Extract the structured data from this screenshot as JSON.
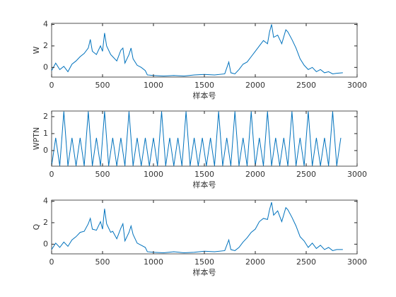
{
  "chart_data": [
    {
      "type": "line",
      "ylabel": "W",
      "xlabel": "样本号",
      "color": "#0072bd",
      "xlim": [
        0,
        3000
      ],
      "ylim": [
        -0.9,
        4.1
      ],
      "xticks": [
        0,
        500,
        1000,
        1500,
        2000,
        2500,
        3000
      ],
      "yticks": [
        0,
        2,
        4
      ],
      "x": [
        0,
        40,
        80,
        120,
        160,
        200,
        240,
        280,
        320,
        360,
        380,
        400,
        440,
        480,
        500,
        520,
        540,
        580,
        600,
        640,
        680,
        700,
        720,
        760,
        780,
        800,
        840,
        880,
        920,
        940,
        1000,
        1100,
        1200,
        1300,
        1400,
        1500,
        1600,
        1700,
        1740,
        1760,
        1800,
        1840,
        1880,
        1920,
        1960,
        2000,
        2040,
        2080,
        2120,
        2140,
        2160,
        2180,
        2220,
        2260,
        2300,
        2320,
        2360,
        2400,
        2440,
        2480,
        2520,
        2560,
        2600,
        2640,
        2680,
        2720,
        2760,
        2800,
        2860
      ],
      "values": [
        -0.3,
        0.4,
        -0.2,
        0.1,
        -0.4,
        0.3,
        0.6,
        1.0,
        1.3,
        1.8,
        2.6,
        1.5,
        1.2,
        2.0,
        1.5,
        3.2,
        2.0,
        1.2,
        1.0,
        0.6,
        1.6,
        1.8,
        0.4,
        1.2,
        1.8,
        0.8,
        0.2,
        0.0,
        -0.3,
        -0.7,
        -0.75,
        -0.8,
        -0.75,
        -0.8,
        -0.7,
        -0.65,
        -0.7,
        -0.6,
        0.5,
        -0.5,
        -0.6,
        -0.2,
        0.3,
        0.5,
        1.0,
        1.5,
        2.0,
        2.5,
        2.2,
        3.3,
        4.0,
        2.8,
        3.0,
        2.2,
        3.5,
        3.3,
        2.6,
        1.8,
        0.8,
        0.2,
        -0.2,
        0.0,
        -0.4,
        -0.2,
        -0.5,
        -0.4,
        -0.6,
        -0.55,
        -0.5
      ]
    },
    {
      "type": "line",
      "ylabel": "WPTN",
      "xlabel": "样本号",
      "color": "#0072bd",
      "xlim": [
        0,
        3000
      ],
      "ylim": [
        -0.92,
        2.33
      ],
      "xticks": [
        0,
        500,
        1000,
        1500,
        2000,
        2500,
        3000
      ],
      "yticks": [
        0,
        1,
        2
      ],
      "x": [
        0,
        40,
        80,
        120,
        160,
        200,
        240,
        280,
        320,
        360,
        400,
        440,
        480,
        520,
        560,
        600,
        640,
        680,
        720,
        760,
        800,
        840,
        880,
        920,
        960,
        1000,
        1040,
        1080,
        1120,
        1160,
        1200,
        1240,
        1280,
        1320,
        1360,
        1400,
        1440,
        1480,
        1520,
        1560,
        1600,
        1640,
        1680,
        1720,
        1760,
        1800,
        1840,
        1880,
        1920,
        1960,
        2000,
        2040,
        2080,
        2120,
        2160,
        2200,
        2240,
        2280,
        2320,
        2360,
        2400,
        2440,
        2480,
        2520,
        2560,
        2600,
        2640,
        2680,
        2720,
        2760,
        2800,
        2840
      ],
      "values": [
        -0.9,
        0.75,
        -0.9,
        2.3,
        -0.9,
        0.75,
        -0.9,
        0.75,
        -0.9,
        2.3,
        -0.9,
        0.75,
        -0.9,
        2.3,
        -0.9,
        0.75,
        -0.9,
        0.75,
        -0.9,
        2.3,
        -0.9,
        0.75,
        -0.9,
        0.75,
        -0.9,
        0.75,
        -0.9,
        2.3,
        -0.9,
        0.75,
        -0.9,
        0.75,
        -0.9,
        2.3,
        -0.9,
        0.75,
        -0.9,
        0.75,
        -0.9,
        0.75,
        -0.9,
        2.3,
        -0.9,
        0.75,
        -0.9,
        2.3,
        -0.9,
        0.75,
        -0.9,
        2.3,
        -0.9,
        0.75,
        -0.9,
        2.3,
        -0.9,
        0.75,
        -0.9,
        0.75,
        -0.9,
        2.3,
        -0.9,
        0.75,
        -0.9,
        2.3,
        -0.9,
        0.75,
        -0.9,
        0.75,
        -0.9,
        2.3,
        -0.9,
        0.75
      ]
    },
    {
      "type": "line",
      "ylabel": "Q",
      "xlabel": "样本号",
      "color": "#0072bd",
      "xlim": [
        0,
        3000
      ],
      "ylim": [
        -0.9,
        4.1
      ],
      "xticks": [
        0,
        500,
        1000,
        1500,
        2000,
        2500,
        3000
      ],
      "yticks": [
        0,
        2,
        4
      ],
      "x": [
        0,
        40,
        80,
        120,
        160,
        200,
        240,
        280,
        320,
        360,
        380,
        400,
        440,
        480,
        500,
        520,
        540,
        580,
        600,
        640,
        680,
        700,
        720,
        760,
        780,
        800,
        840,
        880,
        920,
        940,
        1000,
        1100,
        1200,
        1300,
        1400,
        1500,
        1600,
        1700,
        1740,
        1760,
        1800,
        1840,
        1880,
        1920,
        1960,
        2000,
        2040,
        2080,
        2120,
        2140,
        2160,
        2180,
        2220,
        2260,
        2300,
        2320,
        2360,
        2400,
        2440,
        2480,
        2520,
        2560,
        2600,
        2640,
        2680,
        2720,
        2760,
        2800,
        2860
      ],
      "values": [
        -0.5,
        0.1,
        -0.3,
        0.2,
        -0.2,
        0.4,
        0.7,
        1.1,
        1.2,
        1.9,
        2.4,
        1.4,
        1.3,
        2.1,
        1.4,
        3.3,
        1.9,
        1.1,
        1.2,
        0.5,
        1.5,
        1.9,
        0.3,
        1.1,
        1.7,
        0.9,
        0.1,
        -0.1,
        -0.3,
        -0.7,
        -0.75,
        -0.8,
        -0.7,
        -0.8,
        -0.75,
        -0.65,
        -0.7,
        -0.6,
        0.4,
        -0.5,
        -0.6,
        -0.3,
        0.2,
        0.6,
        1.1,
        1.4,
        2.1,
        2.4,
        2.3,
        3.2,
        3.9,
        2.7,
        3.1,
        2.1,
        3.4,
        3.2,
        2.5,
        1.7,
        0.7,
        0.3,
        -0.3,
        0.1,
        -0.4,
        -0.1,
        -0.5,
        -0.3,
        -0.6,
        -0.5,
        -0.5
      ]
    }
  ]
}
